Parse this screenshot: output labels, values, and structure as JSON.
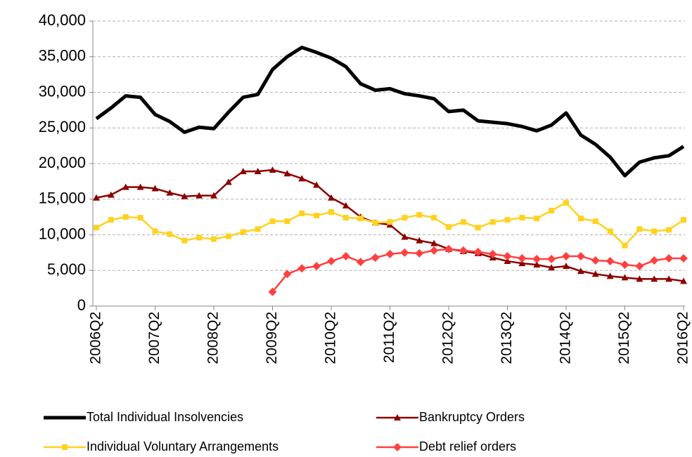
{
  "chart_data": {
    "type": "line",
    "categories": [
      "2006Q2",
      null,
      null,
      null,
      "2007Q2",
      null,
      null,
      null,
      "2008Q2",
      null,
      null,
      null,
      "2009Q2",
      null,
      null,
      null,
      "2010Q2",
      null,
      null,
      null,
      "2011Q2",
      null,
      null,
      null,
      "2012Q2",
      null,
      null,
      null,
      "2013Q2",
      null,
      null,
      null,
      "2014Q2",
      null,
      null,
      null,
      "2015Q2",
      null,
      null,
      null,
      "2016Q2"
    ],
    "ylim": [
      0,
      40000
    ],
    "yticks": [
      0,
      {
        "value": 5000,
        "label": "5,000"
      },
      {
        "value": 10000,
        "label": "10,000"
      },
      {
        "value": 15000,
        "label": "15,000"
      },
      {
        "value": 20000,
        "label": "20,000"
      },
      {
        "value": 25000,
        "label": "25,000"
      },
      {
        "value": 30000,
        "label": "30,000"
      },
      {
        "value": 35000,
        "label": "35,000"
      },
      {
        "value": 40000,
        "label": "40,000"
      }
    ],
    "grid": true,
    "legend": "bottom",
    "series": [
      {
        "name": "Total Individual Insolvencies",
        "color": "#000000",
        "marker": "none",
        "values": [
          26300,
          27800,
          29500,
          29300,
          26900,
          25900,
          24400,
          25100,
          24900,
          27200,
          29300,
          29700,
          33200,
          35000,
          36300,
          35600,
          34800,
          33600,
          31200,
          30300,
          30500,
          29800,
          29500,
          29100,
          27300,
          27500,
          26000,
          25800,
          25600,
          25200,
          24600,
          25400,
          27100,
          24000,
          22700,
          20900,
          18300,
          20200,
          20800,
          21100,
          22400
        ]
      },
      {
        "name": "Bankruptcy Orders",
        "color": "#8b0000",
        "marker": "triangle",
        "values": [
          15200,
          15600,
          16700,
          16700,
          16500,
          15900,
          15400,
          15500,
          15500,
          17400,
          18900,
          18900,
          19100,
          18600,
          17900,
          17000,
          15200,
          14100,
          12500,
          11700,
          11400,
          9700,
          9200,
          8800,
          8000,
          7700,
          7400,
          6800,
          6300,
          6000,
          5800,
          5400,
          5600,
          4900,
          4500,
          4200,
          4000,
          3800,
          3800,
          3800,
          3500
        ]
      },
      {
        "name": "Individual Voluntary Arrangements",
        "color": "#ffd21f",
        "marker": "square",
        "values": [
          11000,
          12100,
          12500,
          12400,
          10500,
          10100,
          9200,
          9600,
          9400,
          9800,
          10400,
          10800,
          11900,
          11900,
          13000,
          12700,
          13200,
          12400,
          12300,
          11700,
          11800,
          12400,
          12800,
          12400,
          11100,
          11800,
          11000,
          11800,
          12100,
          12400,
          12300,
          13400,
          14500,
          12300,
          11900,
          10500,
          8500,
          10800,
          10500,
          10700,
          12100
        ]
      },
      {
        "name": "Debt relief orders",
        "color": "#ff4040",
        "marker": "diamond",
        "values": [
          null,
          null,
          null,
          null,
          null,
          null,
          null,
          null,
          null,
          null,
          null,
          null,
          2000,
          4500,
          5300,
          5600,
          6300,
          7000,
          6200,
          6800,
          7300,
          7500,
          7400,
          7800,
          8000,
          7800,
          7600,
          7300,
          7000,
          6700,
          6600,
          6600,
          7000,
          7000,
          6400,
          6300,
          5800,
          5600,
          6400,
          6700,
          6700
        ]
      }
    ]
  }
}
